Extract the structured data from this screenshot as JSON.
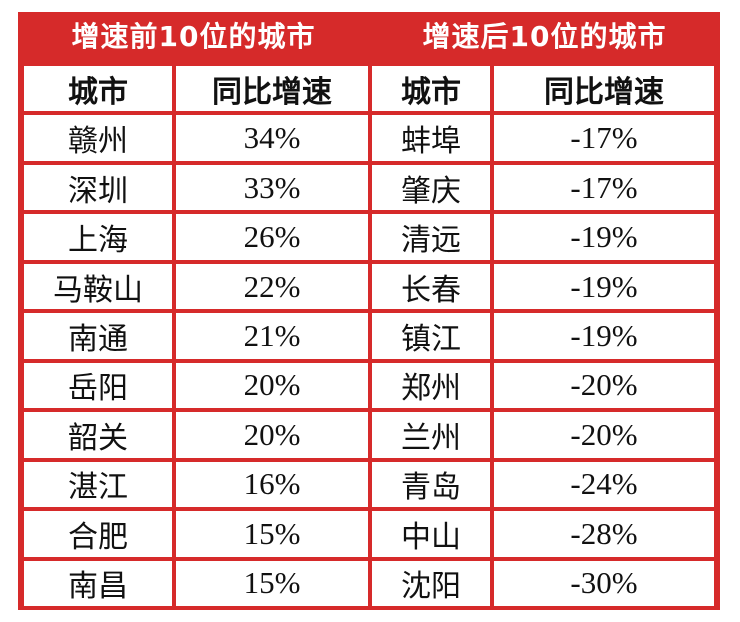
{
  "titles": {
    "left": "增速前10位的城市",
    "right": "增速后10位的城市"
  },
  "headers": {
    "city": "城市",
    "growth": "同比增速"
  },
  "top10": [
    {
      "city": "赣州",
      "growth": "34%"
    },
    {
      "city": "深圳",
      "growth": "33%"
    },
    {
      "city": "上海",
      "growth": "26%"
    },
    {
      "city": "马鞍山",
      "growth": "22%"
    },
    {
      "city": "南通",
      "growth": "21%"
    },
    {
      "city": "岳阳",
      "growth": "20%"
    },
    {
      "city": "韶关",
      "growth": "20%"
    },
    {
      "city": "湛江",
      "growth": "16%"
    },
    {
      "city": "合肥",
      "growth": "15%"
    },
    {
      "city": "南昌",
      "growth": "15%"
    }
  ],
  "bottom10": [
    {
      "city": "蚌埠",
      "growth": "-17%"
    },
    {
      "city": "肇庆",
      "growth": "-17%"
    },
    {
      "city": "清远",
      "growth": "-19%"
    },
    {
      "city": "长春",
      "growth": "-19%"
    },
    {
      "city": "镇江",
      "growth": "-19%"
    },
    {
      "city": "郑州",
      "growth": "-20%"
    },
    {
      "city": "兰州",
      "growth": "-20%"
    },
    {
      "city": "青岛",
      "growth": "-24%"
    },
    {
      "city": "中山",
      "growth": "-28%"
    },
    {
      "city": "沈阳",
      "growth": "-30%"
    }
  ],
  "colors": {
    "frame": "#d62a2a",
    "title_text": "#ffffff",
    "cell_bg": "#ffffff",
    "cell_text": "#111111"
  }
}
